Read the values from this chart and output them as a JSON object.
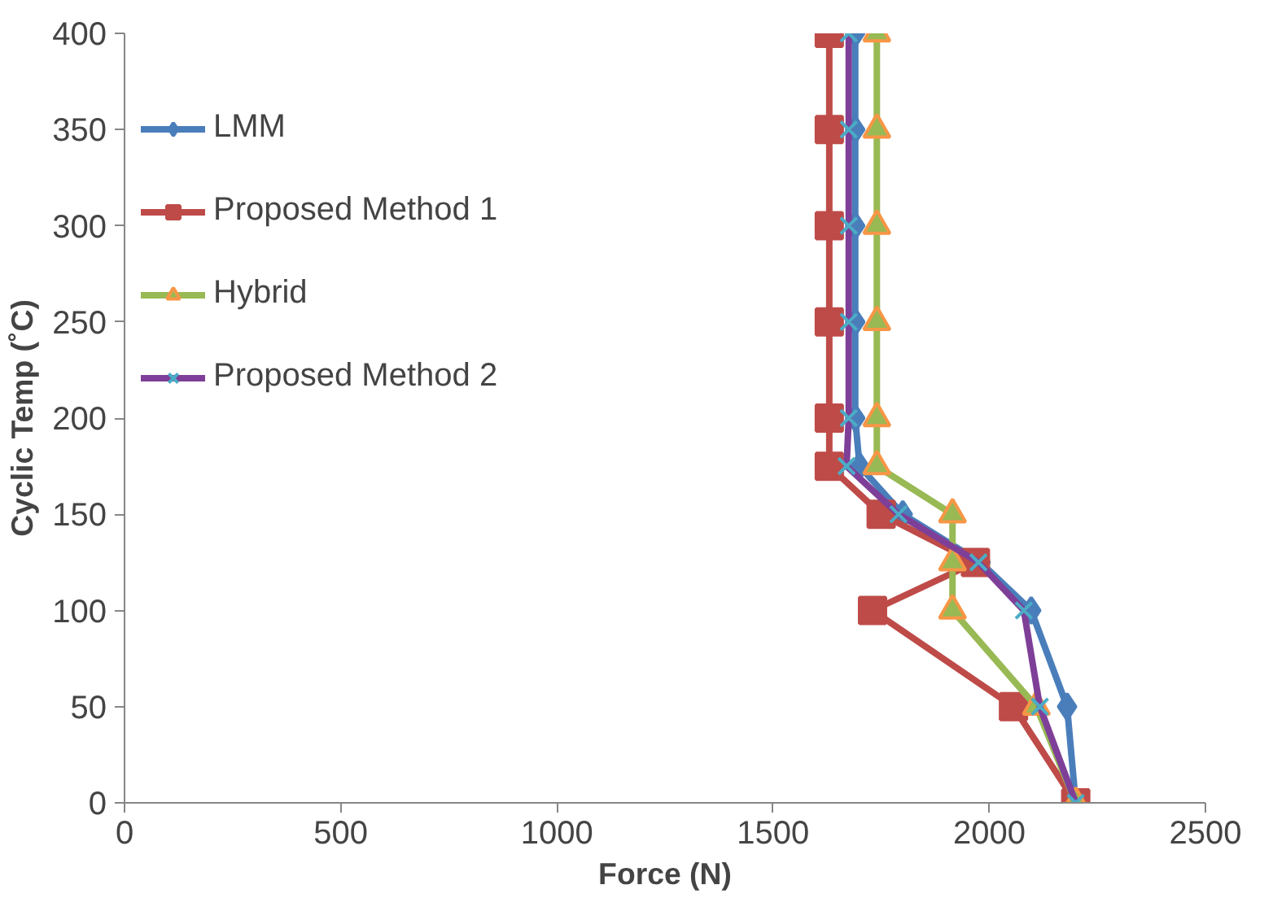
{
  "chart_data": {
    "type": "line",
    "xlabel": "Force (N)",
    "ylabel": "Cyclic Temp (˚C)",
    "xlim": [
      0,
      2500
    ],
    "xticks": [
      0,
      500,
      1000,
      1500,
      2000,
      2500
    ],
    "ylim": [
      0,
      400
    ],
    "yticks": [
      0,
      50,
      100,
      150,
      200,
      250,
      300,
      350,
      400
    ],
    "grid": false,
    "legend": "left",
    "series": [
      {
        "name": "LMM",
        "color": "#4a7ebb",
        "marker": "diamond",
        "x": [
          2200,
          2180,
          2097,
          1980,
          1800,
          1700,
          1690,
          1690,
          1690,
          1690,
          1690
        ],
        "values": [
          0,
          50,
          100,
          125,
          150,
          175,
          200,
          250,
          300,
          350,
          400
        ]
      },
      {
        "name": "Proposed Method 1",
        "color": "#be4b48",
        "marker": "square",
        "x": [
          2200,
          2056,
          1730,
          1968,
          1750,
          1630,
          1630,
          1630,
          1630,
          1630,
          1630
        ],
        "values": [
          0,
          50,
          100,
          125,
          150,
          175,
          200,
          250,
          300,
          350,
          400
        ]
      },
      {
        "name": "Hybrid",
        "color": "#98b954",
        "marker": "triangle",
        "x": [
          2200,
          2109,
          1915,
          1915,
          1915,
          1740,
          1740,
          1740,
          1740,
          1740,
          1740
        ],
        "values": [
          0,
          50,
          100,
          125,
          150,
          175,
          200,
          250,
          300,
          350,
          400
        ]
      },
      {
        "name": "Proposed Method 2",
        "color": "#7e3f98",
        "marker": "cross",
        "x": [
          2200,
          2117,
          2080,
          1975,
          1790,
          1670,
          1675,
          1675,
          1675,
          1675,
          1675
        ],
        "values": [
          0,
          50,
          100,
          125,
          150,
          175,
          200,
          250,
          300,
          350,
          400
        ]
      }
    ]
  }
}
